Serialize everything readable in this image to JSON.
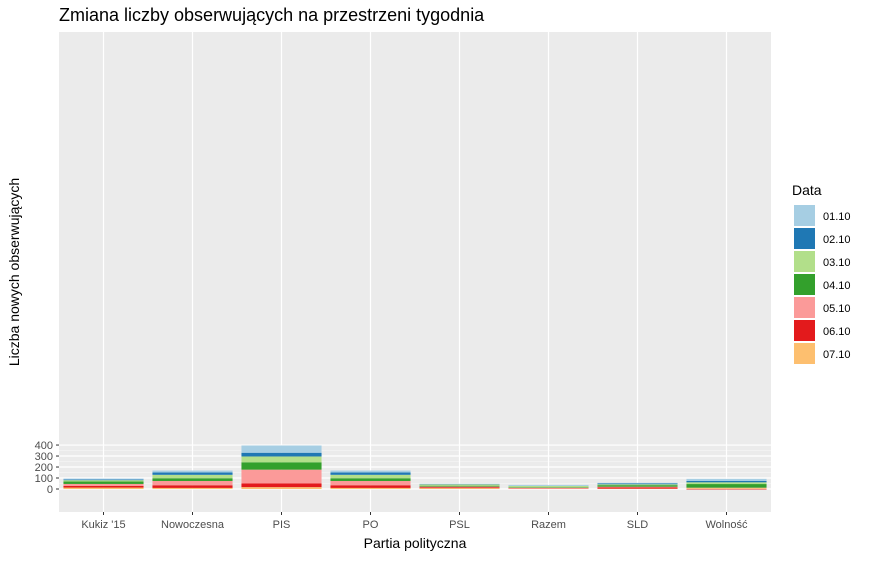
{
  "chart_data": {
    "type": "bar",
    "stacked": true,
    "title": "Zmiana liczby obserwujących na przestrzeni tygodnia",
    "xlabel": "Partia polityczna",
    "ylabel": "Liczba nowych obserwujących",
    "ylim": [
      -5,
      400
    ],
    "yticks": [
      0,
      100,
      200,
      300,
      400
    ],
    "grid": true,
    "legend_title": "Data",
    "legend_position": "right",
    "categories": [
      "Kukiz '15",
      "Nowoczesna",
      "PIS",
      "PO",
      "PSL",
      "Razem",
      "SLD",
      "Wolność"
    ],
    "series": [
      {
        "name": "07.10",
        "color": "#fdbf6f",
        "values": [
          13,
          10,
          17,
          10,
          8,
          2,
          3,
          8
        ]
      },
      {
        "name": "06.10",
        "color": "#e31a1c",
        "values": [
          16,
          24,
          33,
          24,
          8,
          2,
          12,
          -4
        ]
      },
      {
        "name": "05.10",
        "color": "#fb9a99",
        "values": [
          17,
          39,
          126,
          39,
          6,
          8,
          6,
          4
        ]
      },
      {
        "name": "04.10",
        "color": "#33a02c",
        "values": [
          22,
          25,
          67,
          25,
          8,
          5,
          14,
          33
        ]
      },
      {
        "name": "03.10",
        "color": "#b2df8a",
        "values": [
          12,
          31,
          53,
          31,
          11,
          11,
          8,
          16
        ]
      },
      {
        "name": "02.10",
        "color": "#1f78b4",
        "values": [
          6,
          21,
          34,
          21,
          3,
          0,
          8,
          12
        ]
      },
      {
        "name": "01.10",
        "color": "#a6cee3",
        "values": [
          9,
          18,
          66,
          18,
          3,
          9,
          5,
          19
        ]
      }
    ]
  }
}
